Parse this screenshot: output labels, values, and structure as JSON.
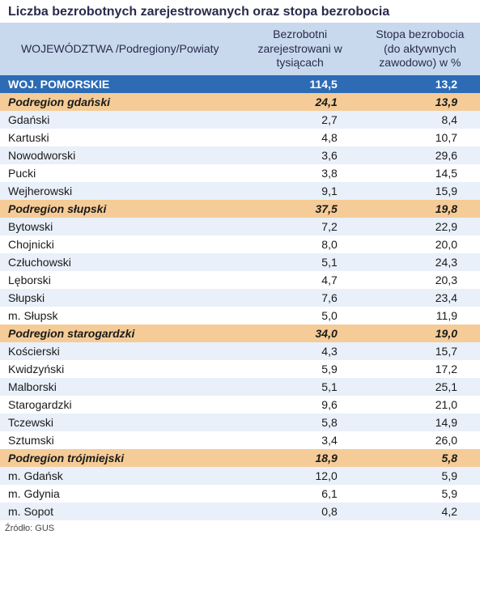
{
  "title": "Liczba bezrobotnych zarejestrowanych oraz stopa bezrobocia",
  "columns": {
    "name": "WOJEWÓDZTWA\n/Podregiony/Powiaty",
    "registered": "Bezrobotni zarejestrowani w tysiącach",
    "rate": "Stopa bezrobocia (do aktywnych zawodowo) w %"
  },
  "styling": {
    "header_bg": "#c8d9ee",
    "header_text": "#2a2a4a",
    "woj_bg": "#2d6bb5",
    "woj_text": "#ffffff",
    "podregion_bg": "#f5cc97",
    "row_alt_bg": "#e9f0f9",
    "row_norm_bg": "#ffffff",
    "title_fontsize": 16,
    "body_fontsize": 14,
    "source_fontsize": 11
  },
  "rows": [
    {
      "type": "woj",
      "name": "WOJ. POMORSKIE",
      "registered": "114,5",
      "rate": "13,2"
    },
    {
      "type": "podregion",
      "name": "Podregion gdański",
      "registered": "24,1",
      "rate": "13,9"
    },
    {
      "type": "powiat",
      "name": "Gdański",
      "registered": "2,7",
      "rate": "8,4"
    },
    {
      "type": "powiat",
      "name": "Kartuski",
      "registered": "4,8",
      "rate": "10,7"
    },
    {
      "type": "powiat",
      "name": "Nowodworski",
      "registered": "3,6",
      "rate": "29,6"
    },
    {
      "type": "powiat",
      "name": "Pucki",
      "registered": "3,8",
      "rate": "14,5"
    },
    {
      "type": "powiat",
      "name": "Wejherowski",
      "registered": "9,1",
      "rate": "15,9"
    },
    {
      "type": "podregion",
      "name": "Podregion słupski",
      "registered": "37,5",
      "rate": "19,8"
    },
    {
      "type": "powiat",
      "name": "Bytowski",
      "registered": "7,2",
      "rate": "22,9"
    },
    {
      "type": "powiat",
      "name": "Chojnicki",
      "registered": "8,0",
      "rate": "20,0"
    },
    {
      "type": "powiat",
      "name": "Człuchowski",
      "registered": "5,1",
      "rate": "24,3"
    },
    {
      "type": "powiat",
      "name": "Lęborski",
      "registered": "4,7",
      "rate": "20,3"
    },
    {
      "type": "powiat",
      "name": "Słupski",
      "registered": "7,6",
      "rate": "23,4"
    },
    {
      "type": "powiat",
      "name": "m. Słupsk",
      "registered": "5,0",
      "rate": "11,9"
    },
    {
      "type": "podregion",
      "name": "Podregion starogardzki",
      "registered": "34,0",
      "rate": "19,0"
    },
    {
      "type": "powiat",
      "name": "Kościerski",
      "registered": "4,3",
      "rate": "15,7"
    },
    {
      "type": "powiat",
      "name": "Kwidzyński",
      "registered": "5,9",
      "rate": "17,2"
    },
    {
      "type": "powiat",
      "name": "Malborski",
      "registered": "5,1",
      "rate": "25,1"
    },
    {
      "type": "powiat",
      "name": "Starogardzki",
      "registered": "9,6",
      "rate": "21,0"
    },
    {
      "type": "powiat",
      "name": "Tczewski",
      "registered": "5,8",
      "rate": "14,9"
    },
    {
      "type": "powiat",
      "name": "Sztumski",
      "registered": "3,4",
      "rate": "26,0"
    },
    {
      "type": "podregion",
      "name": "Podregion trójmiejski",
      "registered": "18,9",
      "rate": "5,8"
    },
    {
      "type": "powiat",
      "name": "m. Gdańsk",
      "registered": "12,0",
      "rate": "5,9"
    },
    {
      "type": "powiat",
      "name": "m. Gdynia",
      "registered": "6,1",
      "rate": "5,9"
    },
    {
      "type": "powiat",
      "name": "m. Sopot",
      "registered": "0,8",
      "rate": "4,2"
    }
  ],
  "source": "Źródło: GUS"
}
